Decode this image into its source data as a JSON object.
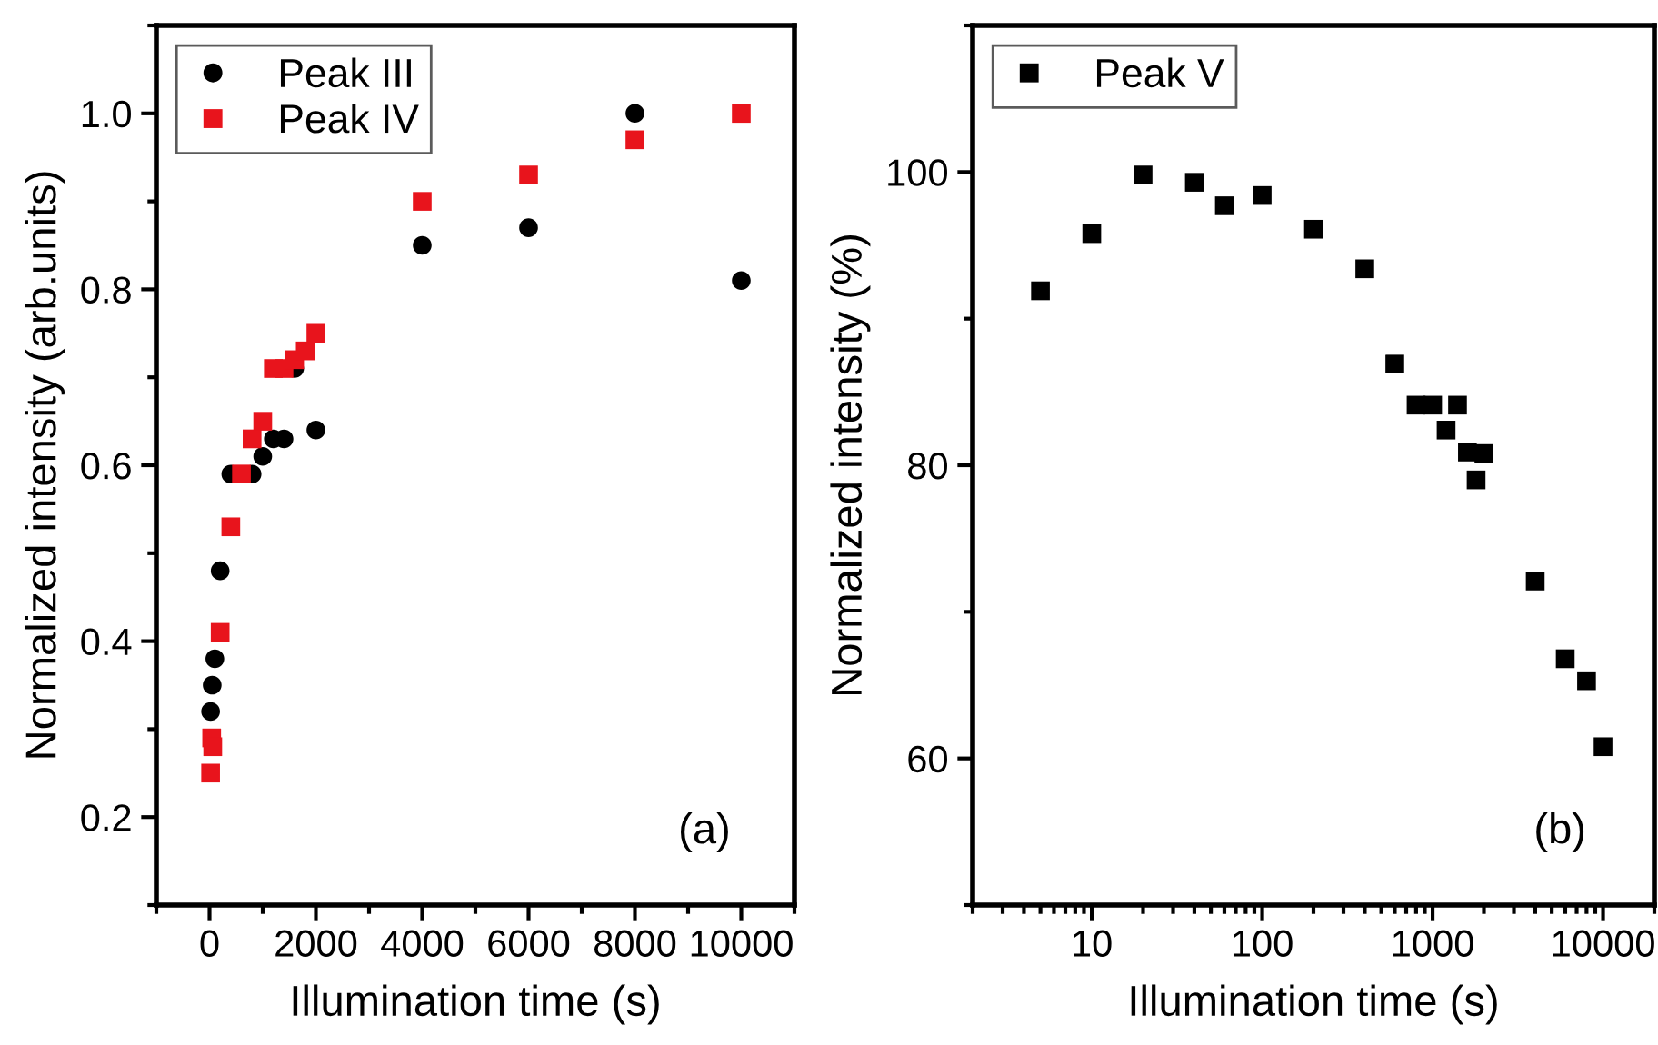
{
  "chart_data": [
    {
      "type": "scatter",
      "xlabel": "Illumination time (s)",
      "ylabel": "Normalized intensity (arb.units)",
      "xlim": [
        -1000,
        11000
      ],
      "xticks": [
        {
          "value": -1000,
          "label": null
        },
        0,
        {
          "value": 1000,
          "label": null
        },
        2000,
        {
          "value": 3000,
          "label": null
        },
        4000,
        {
          "value": 5000,
          "label": null
        },
        6000,
        {
          "value": 7000,
          "label": null
        },
        8000,
        {
          "value": 9000,
          "label": null
        },
        10000,
        {
          "value": 11000,
          "label": null
        }
      ],
      "ylim": [
        0.1,
        1.1
      ],
      "yticks": [
        {
          "value": 0.1,
          "label": null
        },
        0.2,
        {
          "value": 0.3,
          "label": null
        },
        0.4,
        {
          "value": 0.5,
          "label": null
        },
        0.6,
        {
          "value": 0.7,
          "label": null
        },
        0.8,
        {
          "value": 0.9,
          "label": null
        },
        {
          "value": 1.0,
          "label": "1.0"
        },
        {
          "value": 1.1,
          "label": null
        }
      ],
      "grid": false,
      "legend": "top left",
      "series": [
        {
          "name": "Peak III",
          "color": "#000000",
          "marker": "circle",
          "x": [
            20,
            50,
            100,
            200,
            400,
            800,
            1000,
            1200,
            1400,
            1600,
            2000,
            4000,
            6000,
            8000,
            10000
          ],
          "values": [
            0.32,
            0.35,
            0.38,
            0.48,
            0.59,
            0.59,
            0.61,
            0.63,
            0.63,
            0.71,
            0.64,
            0.85,
            0.87,
            1.0,
            0.81
          ]
        },
        {
          "name": "Peak IV",
          "color": "#e8141c",
          "marker": "square",
          "x": [
            20,
            40,
            60,
            200,
            400,
            600,
            800,
            1000,
            1200,
            1400,
            1600,
            1800,
            2000,
            4000,
            6000,
            8000,
            10000
          ],
          "values": [
            0.25,
            0.29,
            0.28,
            0.41,
            0.53,
            0.59,
            0.63,
            0.65,
            0.71,
            0.71,
            0.72,
            0.73,
            0.75,
            0.9,
            0.93,
            0.97,
            1.0
          ]
        }
      ],
      "annotations": [
        "(a)"
      ]
    },
    {
      "type": "scatter",
      "xlabel": "Illumination time (s)",
      "ylabel": "Normalized intensity (%)",
      "log": "x",
      "xlim": [
        2,
        20000
      ],
      "xticks": [
        {
          "value": 2,
          "label": null
        },
        {
          "value": 3,
          "label": null
        },
        {
          "value": 4,
          "label": null
        },
        {
          "value": 5,
          "label": null
        },
        {
          "value": 6,
          "label": null
        },
        {
          "value": 7,
          "label": null
        },
        {
          "value": 8,
          "label": null
        },
        {
          "value": 9,
          "label": null
        },
        10,
        {
          "value": 20,
          "label": null
        },
        {
          "value": 30,
          "label": null
        },
        {
          "value": 40,
          "label": null
        },
        {
          "value": 50,
          "label": null
        },
        {
          "value": 60,
          "label": null
        },
        {
          "value": 70,
          "label": null
        },
        {
          "value": 80,
          "label": null
        },
        {
          "value": 90,
          "label": null
        },
        100,
        {
          "value": 200,
          "label": null
        },
        {
          "value": 300,
          "label": null
        },
        {
          "value": 400,
          "label": null
        },
        {
          "value": 500,
          "label": null
        },
        {
          "value": 600,
          "label": null
        },
        {
          "value": 700,
          "label": null
        },
        {
          "value": 800,
          "label": null
        },
        {
          "value": 900,
          "label": null
        },
        1000,
        {
          "value": 2000,
          "label": null
        },
        {
          "value": 3000,
          "label": null
        },
        {
          "value": 4000,
          "label": null
        },
        {
          "value": 5000,
          "label": null
        },
        {
          "value": 6000,
          "label": null
        },
        {
          "value": 7000,
          "label": null
        },
        {
          "value": 8000,
          "label": null
        },
        {
          "value": 9000,
          "label": null
        },
        10000,
        {
          "value": 20000,
          "label": null
        }
      ],
      "ylim": [
        50,
        110
      ],
      "yticks": [
        {
          "value": 50,
          "label": null
        },
        60,
        {
          "value": 70,
          "label": null
        },
        80,
        {
          "value": 90,
          "label": null
        },
        100,
        {
          "value": 110,
          "label": null
        }
      ],
      "grid": false,
      "legend": "top left",
      "series": [
        {
          "name": "Peak V",
          "color": "#000000",
          "marker": "square",
          "x": [
            5,
            10,
            20,
            40,
            60,
            100,
            200,
            400,
            600,
            800,
            1000,
            1200,
            1400,
            1600,
            1800,
            2000,
            4000,
            6000,
            8000,
            10000
          ],
          "values": [
            91.9,
            95.8,
            99.8,
            99.3,
            97.7,
            98.4,
            96.1,
            93.4,
            86.9,
            84.1,
            84.1,
            82.4,
            84.1,
            80.9,
            79.0,
            80.8,
            72.1,
            66.8,
            65.3,
            60.8
          ]
        }
      ],
      "annotations": [
        "(b)"
      ]
    }
  ]
}
